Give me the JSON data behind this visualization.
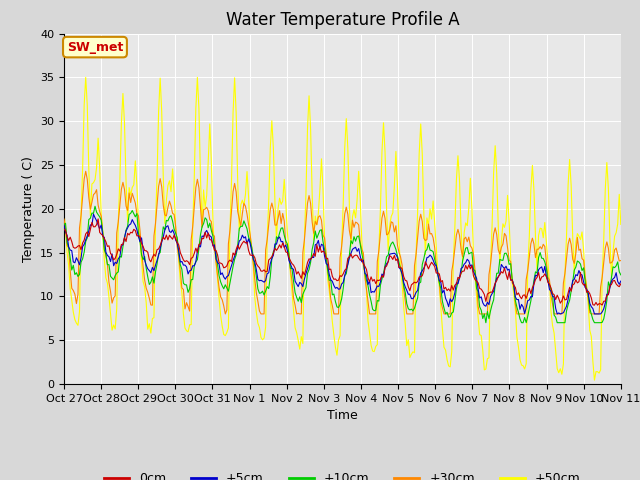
{
  "title": "Water Temperature Profile A",
  "xlabel": "Time",
  "ylabel": "Temperature ( C)",
  "ylim": [
    0,
    40
  ],
  "tick_labels": [
    "Oct 27",
    "Oct 28",
    "Oct 29",
    "Oct 30",
    "Oct 31",
    "Nov 1",
    "Nov 2",
    "Nov 3",
    "Nov 4",
    "Nov 5",
    "Nov 6",
    "Nov 7",
    "Nov 8",
    "Nov 9",
    "Nov 10",
    "Nov 11"
  ],
  "tick_positions": [
    0,
    24,
    48,
    72,
    96,
    120,
    144,
    168,
    192,
    216,
    240,
    264,
    288,
    312,
    336,
    360
  ],
  "fig_bg_color": "#d8d8d8",
  "plot_bg_color": "#e8e8e8",
  "series_colors": [
    "#cc0000",
    "#0000cc",
    "#00cc00",
    "#ff8800",
    "#ffff00"
  ],
  "series_names": [
    "0cm",
    "+5cm",
    "+10cm",
    "+30cm",
    "+50cm"
  ],
  "annotation_text": "SW_met",
  "annotation_bg": "#ffffcc",
  "annotation_border": "#cc8800",
  "annotation_text_color": "#cc0000",
  "grid_color": "#ffffff",
  "yticks": [
    0,
    5,
    10,
    15,
    20,
    25,
    30,
    35,
    40
  ],
  "title_fontsize": 12,
  "axis_fontsize": 9,
  "tick_fontsize": 8,
  "legend_fontsize": 9
}
